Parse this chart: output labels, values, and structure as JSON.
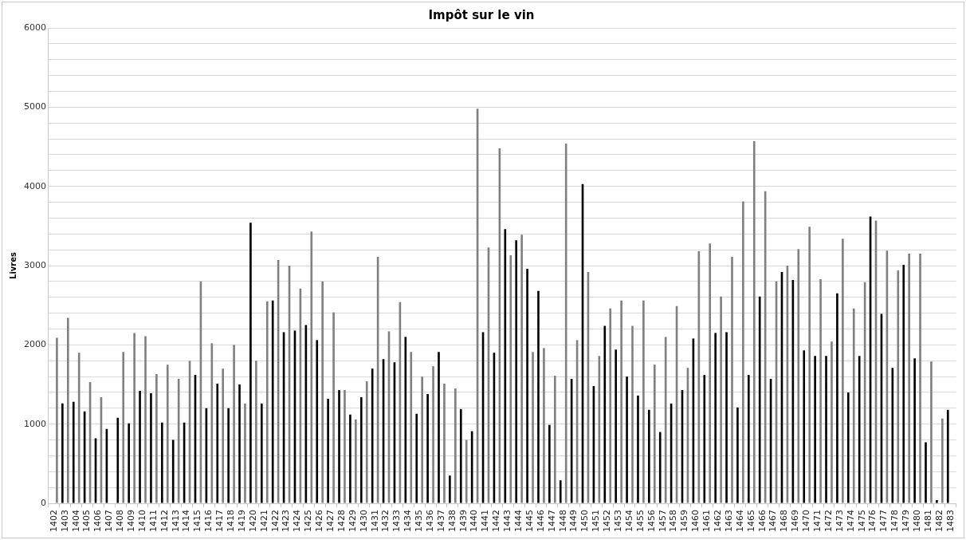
{
  "chart_data": {
    "type": "bar",
    "title": "Impôt sur le vin",
    "ylabel": "Livres",
    "categories": [
      "1402",
      "1403",
      "1404",
      "1405",
      "1406",
      "1407",
      "1408",
      "1409",
      "1410",
      "1411",
      "1412",
      "1413",
      "1414",
      "1415",
      "1416",
      "1417",
      "1418",
      "1419",
      "1420",
      "1421",
      "1422",
      "1423",
      "1424",
      "1425",
      "1426",
      "1427",
      "1428",
      "1429",
      "1430",
      "1431",
      "1432",
      "1433",
      "1434",
      "1435",
      "1436",
      "1437",
      "1438",
      "1439",
      "1440",
      "1441",
      "1442",
      "1443",
      "1444",
      "1445",
      "1446",
      "1447",
      "1448",
      "1449",
      "1450",
      "1451",
      "1452",
      "1453",
      "1454",
      "1455",
      "1456",
      "1457",
      "1458",
      "1459",
      "1460",
      "1461",
      "1462",
      "1463",
      "1464",
      "1465",
      "1466",
      "1467",
      "1468",
      "1469",
      "1470",
      "1471",
      "1472",
      "1473",
      "1474",
      "1475",
      "1476",
      "1477",
      "1478",
      "1479",
      "1480",
      "1481",
      "1482",
      "1483"
    ],
    "series": [
      {
        "color": "#000000",
        "values": [
          null,
          1260,
          1280,
          1160,
          820,
          940,
          1080,
          1010,
          1420,
          1390,
          1020,
          800,
          1020,
          1620,
          1200,
          1510,
          1200,
          1500,
          3540,
          1260,
          2560,
          2160,
          2180,
          2250,
          2060,
          1320,
          1430,
          1120,
          1340,
          1700,
          1820,
          1780,
          2100,
          1130,
          1380,
          1910,
          350,
          1190,
          910,
          2160,
          1900,
          3460,
          3320,
          2960,
          2680,
          990,
          290,
          1570,
          4030,
          1480,
          2240,
          1940,
          1600,
          1360,
          1180,
          900,
          1260,
          1430,
          2080,
          1620,
          2150,
          2160,
          1210,
          1620,
          2610,
          1570,
          2920,
          2820,
          1930,
          1860,
          1860,
          2650,
          1400,
          1860,
          3620,
          2390,
          1710,
          3010,
          1830,
          770,
          40,
          1180
        ]
      },
      {
        "color": "#808080",
        "values": [
          2090,
          2340,
          1900,
          1530,
          1340,
          null,
          1910,
          2150,
          2110,
          1630,
          1750,
          1570,
          1800,
          2800,
          2020,
          1700,
          2000,
          1260,
          1800,
          2550,
          3070,
          3000,
          2710,
          3430,
          2800,
          2410,
          1430,
          1060,
          1540,
          3110,
          2170,
          2540,
          1910,
          1600,
          1730,
          1510,
          1450,
          800,
          4980,
          3230,
          4480,
          3130,
          3390,
          1910,
          1960,
          1610,
          4540,
          2060,
          2920,
          1860,
          2460,
          2560,
          2240,
          2560,
          1750,
          2100,
          2490,
          1710,
          3180,
          3280,
          2610,
          3110,
          3810,
          4570,
          3940,
          2800,
          3000,
          3210,
          3490,
          2830,
          2040,
          3340,
          2460,
          2790,
          3570,
          3190,
          2940,
          3150,
          3150,
          1790,
          1070,
          null
        ]
      }
    ],
    "ylim": [
      0,
      6000
    ],
    "yticks": [
      0,
      {
        "value": 200,
        "label": null
      },
      {
        "value": 400,
        "label": null
      },
      {
        "value": 600,
        "label": null
      },
      {
        "value": 800,
        "label": null
      },
      1000,
      {
        "value": 1200,
        "label": null
      },
      {
        "value": 1400,
        "label": null
      },
      {
        "value": 1600,
        "label": null
      },
      {
        "value": 1800,
        "label": null
      },
      2000,
      {
        "value": 2200,
        "label": null
      },
      {
        "value": 2400,
        "label": null
      },
      {
        "value": 2600,
        "label": null
      },
      {
        "value": 2800,
        "label": null
      },
      3000,
      {
        "value": 3200,
        "label": null
      },
      {
        "value": 3400,
        "label": null
      },
      {
        "value": 3600,
        "label": null
      },
      {
        "value": 3800,
        "label": null
      },
      4000,
      {
        "value": 4200,
        "label": null
      },
      {
        "value": 4400,
        "label": null
      },
      {
        "value": 4600,
        "label": null
      },
      {
        "value": 4800,
        "label": null
      },
      5000,
      {
        "value": 5200,
        "label": null
      },
      {
        "value": 5400,
        "label": null
      },
      {
        "value": 5600,
        "label": null
      },
      {
        "value": 5800,
        "label": null
      },
      6000
    ],
    "grid": "y"
  }
}
